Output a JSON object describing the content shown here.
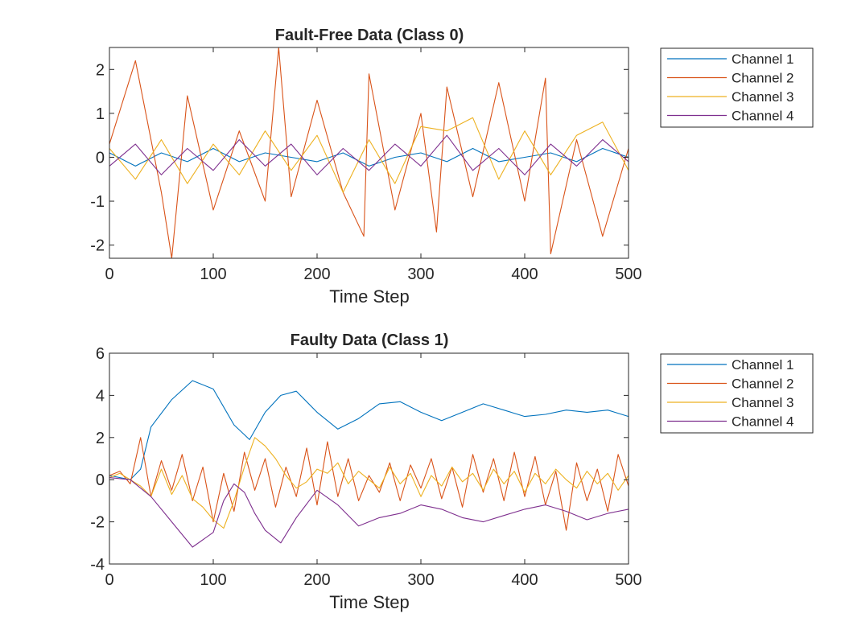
{
  "colors": {
    "channel1": "#0072BD",
    "channel2": "#D95319",
    "channel3": "#EDB120",
    "channel4": "#7E2F8E",
    "axis": "#262626"
  },
  "chart_data": [
    {
      "type": "line",
      "title": "Fault-Free Data (Class 0)",
      "xlabel": "Time Step",
      "ylabel": "",
      "xlim": [
        0,
        500
      ],
      "ylim": [
        -2.3,
        2.5
      ],
      "xticks": [
        0,
        100,
        200,
        300,
        400,
        500
      ],
      "xtick_labels": [
        "0",
        "100",
        "200",
        "300",
        "400",
        "500"
      ],
      "yticks": [
        -2,
        -1,
        0,
        1,
        2
      ],
      "ytick_labels": [
        "-2",
        "-1",
        "0",
        "1",
        "2"
      ],
      "grid": false,
      "legend_position": "outside-right-top",
      "series": [
        {
          "name": "Channel 1",
          "color": "#0072BD",
          "x": [
            0,
            25,
            50,
            75,
            100,
            125,
            150,
            175,
            200,
            225,
            250,
            275,
            300,
            325,
            350,
            375,
            400,
            425,
            450,
            475,
            500
          ],
          "values": [
            0.1,
            -0.2,
            0.1,
            -0.1,
            0.2,
            -0.1,
            0.1,
            0.0,
            -0.1,
            0.1,
            -0.2,
            0.0,
            0.1,
            -0.1,
            0.2,
            -0.1,
            0.0,
            0.1,
            -0.1,
            0.2,
            0.0
          ]
        },
        {
          "name": "Channel 2",
          "color": "#D95319",
          "x": [
            0,
            25,
            50,
            60,
            75,
            100,
            125,
            150,
            163,
            175,
            200,
            225,
            245,
            250,
            275,
            300,
            315,
            325,
            350,
            375,
            400,
            420,
            425,
            450,
            475,
            500
          ],
          "values": [
            0.3,
            2.2,
            -0.8,
            -2.3,
            1.4,
            -1.2,
            0.6,
            -1.0,
            2.5,
            -0.9,
            1.3,
            -0.8,
            -1.8,
            1.9,
            -1.2,
            1.0,
            -1.7,
            1.6,
            -0.9,
            1.7,
            -1.0,
            1.8,
            -2.2,
            0.4,
            -1.8,
            0.2
          ]
        },
        {
          "name": "Channel 3",
          "color": "#EDB120",
          "x": [
            0,
            25,
            50,
            75,
            100,
            125,
            150,
            175,
            200,
            225,
            250,
            275,
            300,
            325,
            350,
            375,
            400,
            425,
            450,
            475,
            500
          ],
          "values": [
            0.2,
            -0.5,
            0.4,
            -0.6,
            0.3,
            -0.4,
            0.6,
            -0.3,
            0.5,
            -0.8,
            0.4,
            -0.6,
            0.7,
            0.6,
            0.9,
            -0.5,
            0.6,
            -0.4,
            0.5,
            0.8,
            -0.3
          ]
        },
        {
          "name": "Channel 4",
          "color": "#7E2F8E",
          "x": [
            0,
            25,
            50,
            75,
            100,
            125,
            150,
            175,
            200,
            225,
            250,
            275,
            300,
            325,
            350,
            375,
            400,
            425,
            450,
            475,
            500
          ],
          "values": [
            -0.2,
            0.3,
            -0.4,
            0.2,
            -0.3,
            0.4,
            -0.2,
            0.3,
            -0.4,
            0.2,
            -0.3,
            0.3,
            -0.2,
            0.5,
            -0.3,
            0.2,
            -0.4,
            0.3,
            -0.2,
            0.4,
            -0.1
          ]
        }
      ]
    },
    {
      "type": "line",
      "title": "Faulty Data (Class 1)",
      "xlabel": "Time Step",
      "ylabel": "",
      "xlim": [
        0,
        500
      ],
      "ylim": [
        -4,
        6
      ],
      "xticks": [
        0,
        100,
        200,
        300,
        400,
        500
      ],
      "xtick_labels": [
        "0",
        "100",
        "200",
        "300",
        "400",
        "500"
      ],
      "yticks": [
        -4,
        -2,
        0,
        2,
        4,
        6
      ],
      "ytick_labels": [
        "-4",
        "-2",
        "0",
        "2",
        "4",
        "6"
      ],
      "grid": false,
      "legend_position": "outside-right-top",
      "series": [
        {
          "name": "Channel 1",
          "color": "#0072BD",
          "x": [
            0,
            20,
            30,
            40,
            60,
            80,
            100,
            120,
            135,
            150,
            165,
            180,
            200,
            220,
            240,
            260,
            280,
            300,
            320,
            340,
            360,
            380,
            400,
            420,
            440,
            460,
            480,
            500
          ],
          "values": [
            0.2,
            0.0,
            0.5,
            2.5,
            3.8,
            4.7,
            4.3,
            2.6,
            1.9,
            3.2,
            4.0,
            4.2,
            3.2,
            2.4,
            2.9,
            3.6,
            3.7,
            3.2,
            2.8,
            3.2,
            3.6,
            3.3,
            3.0,
            3.1,
            3.3,
            3.2,
            3.3,
            3.0
          ]
        },
        {
          "name": "Channel 2",
          "color": "#D95319",
          "x": [
            0,
            10,
            20,
            30,
            40,
            50,
            60,
            70,
            80,
            90,
            100,
            110,
            120,
            130,
            140,
            150,
            160,
            170,
            180,
            190,
            200,
            210,
            220,
            230,
            240,
            250,
            260,
            270,
            280,
            290,
            300,
            310,
            320,
            330,
            340,
            350,
            360,
            370,
            380,
            390,
            400,
            410,
            420,
            430,
            440,
            450,
            460,
            470,
            480,
            490,
            500
          ],
          "values": [
            0.2,
            0.4,
            -0.2,
            2.0,
            -0.8,
            0.9,
            -0.5,
            1.2,
            -1.0,
            0.6,
            -2.0,
            0.3,
            -1.5,
            1.3,
            -0.5,
            1.0,
            -1.3,
            0.6,
            -0.8,
            1.5,
            -1.2,
            1.8,
            -0.8,
            1.0,
            -1.0,
            0.2,
            -0.6,
            0.8,
            -1.0,
            0.7,
            -0.4,
            1.0,
            -0.9,
            0.6,
            -1.3,
            1.2,
            -0.6,
            1.0,
            -1.0,
            1.3,
            -0.8,
            1.1,
            -1.2,
            0.4,
            -2.4,
            0.8,
            -1.0,
            0.5,
            -1.5,
            1.2,
            -0.3
          ]
        },
        {
          "name": "Channel 3",
          "color": "#EDB120",
          "x": [
            0,
            10,
            20,
            30,
            40,
            50,
            60,
            70,
            80,
            90,
            100,
            110,
            120,
            130,
            140,
            150,
            160,
            170,
            180,
            190,
            200,
            210,
            220,
            230,
            240,
            250,
            260,
            270,
            280,
            290,
            300,
            310,
            320,
            330,
            340,
            350,
            360,
            370,
            380,
            390,
            400,
            410,
            420,
            430,
            440,
            450,
            460,
            470,
            480,
            490,
            500
          ],
          "values": [
            0.1,
            0.3,
            0.0,
            -0.3,
            -0.8,
            0.5,
            -0.7,
            0.2,
            -0.9,
            -1.3,
            -1.9,
            -2.3,
            -1.0,
            0.6,
            2.0,
            1.6,
            1.0,
            0.2,
            -0.4,
            -0.1,
            0.5,
            0.3,
            0.8,
            -0.2,
            0.4,
            0.0,
            -0.4,
            0.6,
            -0.2,
            0.3,
            -0.8,
            0.2,
            -0.3,
            0.6,
            -0.1,
            0.3,
            -0.5,
            0.5,
            -0.2,
            0.4,
            -0.6,
            0.3,
            -0.2,
            0.5,
            0.0,
            -0.4,
            0.4,
            -0.2,
            0.3,
            -0.5,
            0.2
          ]
        },
        {
          "name": "Channel 4",
          "color": "#7E2F8E",
          "x": [
            0,
            20,
            40,
            60,
            80,
            100,
            110,
            120,
            130,
            140,
            150,
            165,
            180,
            200,
            220,
            240,
            260,
            280,
            300,
            320,
            340,
            360,
            380,
            400,
            420,
            440,
            460,
            480,
            500
          ],
          "values": [
            0.1,
            0.0,
            -0.8,
            -2.0,
            -3.2,
            -2.5,
            -1.0,
            -0.2,
            -0.6,
            -1.6,
            -2.4,
            -3.0,
            -1.8,
            -0.5,
            -1.2,
            -2.2,
            -1.8,
            -1.6,
            -1.2,
            -1.4,
            -1.8,
            -2.0,
            -1.7,
            -1.4,
            -1.2,
            -1.5,
            -1.9,
            -1.6,
            -1.4
          ]
        }
      ]
    }
  ]
}
